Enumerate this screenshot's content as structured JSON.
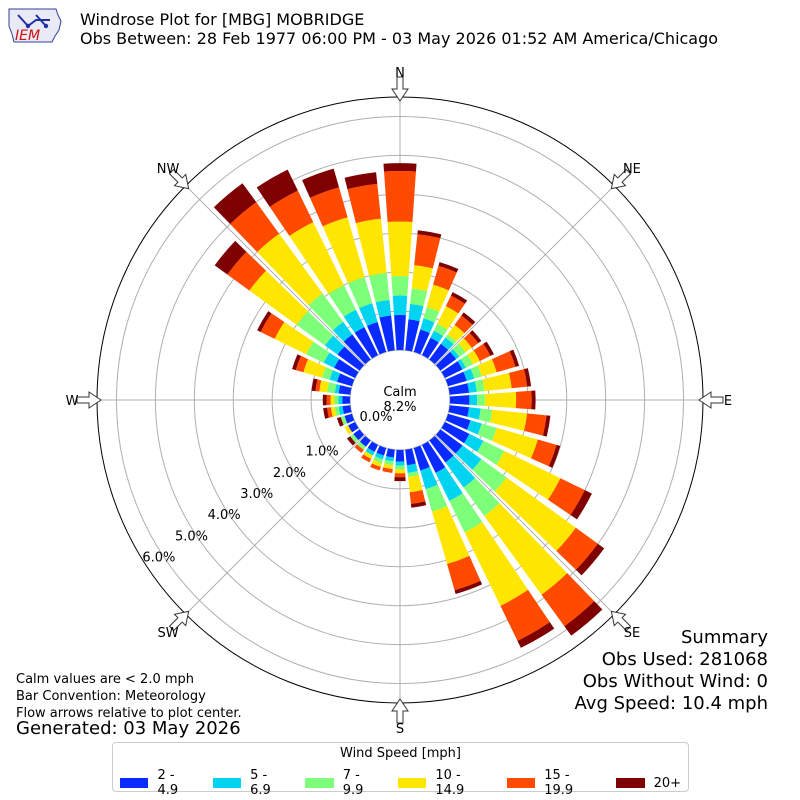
{
  "logo_text": "IEM",
  "title_line1": "Windrose Plot for [MBG] MOBRIDGE",
  "title_line2": "Obs Between: 28 Feb 1977 06:00 PM - 03 May 2026 01:52 AM America/Chicago",
  "calm": {
    "label": "Calm",
    "value": "8.2%"
  },
  "notes": [
    "Calm values are < 2.0 mph",
    "Bar Convention: Meteorology",
    "Flow arrows relative to plot center."
  ],
  "generated": "Generated: 03 May 2026",
  "summary": {
    "title": "Summary",
    "obs_used": "Obs Used: 281068",
    "obs_without_wind": "Obs Without Wind: 0",
    "avg_speed": "Avg Speed: 10.4 mph"
  },
  "legend": {
    "title": "Wind Speed [mph]",
    "items": [
      {
        "label": "2 - 4.9",
        "color": "#0a2bff"
      },
      {
        "label": "5 - 6.9",
        "color": "#00d4f0"
      },
      {
        "label": "7 - 9.9",
        "color": "#7dff7a"
      },
      {
        "label": "10 - 14.9",
        "color": "#ffe600"
      },
      {
        "label": "15 - 19.9",
        "color": "#ff4a00"
      },
      {
        "label": "20+",
        "color": "#7f0000"
      }
    ]
  },
  "chart_data": {
    "type": "windrose",
    "compass_labels": {
      "N": 0,
      "NE": 45,
      "E": 90,
      "SE": 135,
      "S": 180,
      "SW": 225,
      "W": 270,
      "NW": 315
    },
    "radial_ticks": [
      {
        "label": "0.0%",
        "value": 0
      },
      {
        "label": "1.0%",
        "value": 1
      },
      {
        "label": "2.0%",
        "value": 2
      },
      {
        "label": "3.0%",
        "value": 3
      },
      {
        "label": "4.0%",
        "value": 4
      },
      {
        "label": "5.0%",
        "value": 5
      },
      {
        "label": "6.0%",
        "value": 6
      }
    ],
    "rmax": 6.5,
    "bin_labels": [
      "2 - 4.9",
      "5 - 6.9",
      "7 - 9.9",
      "10 - 14.9",
      "15 - 19.9",
      "20+"
    ],
    "colors": [
      "#0a2bff",
      "#00d4f0",
      "#7dff7a",
      "#ffe600",
      "#ff4a00",
      "#7f0000"
    ],
    "directions": [
      0,
      10,
      20,
      30,
      40,
      50,
      60,
      70,
      80,
      90,
      100,
      110,
      120,
      130,
      140,
      150,
      160,
      170,
      180,
      190,
      200,
      210,
      220,
      230,
      240,
      250,
      260,
      270,
      280,
      290,
      300,
      310,
      320,
      330,
      340,
      350
    ],
    "cumulative_percent": [
      [
        0.9,
        1.4,
        1.9,
        3.3,
        4.6,
        4.8
      ],
      [
        0.8,
        1.2,
        1.6,
        2.2,
        3.0,
        3.1
      ],
      [
        0.6,
        0.9,
        1.2,
        1.8,
        2.3,
        2.4
      ],
      [
        0.5,
        0.7,
        0.9,
        1.4,
        1.7,
        1.8
      ],
      [
        0.5,
        0.7,
        0.8,
        1.1,
        1.4,
        1.5
      ],
      [
        0.5,
        0.6,
        0.8,
        1.0,
        1.2,
        1.3
      ],
      [
        0.5,
        0.6,
        0.8,
        1.0,
        1.3,
        1.4
      ],
      [
        0.5,
        0.7,
        0.9,
        1.3,
        1.8,
        1.9
      ],
      [
        0.5,
        0.7,
        0.9,
        1.6,
        2.0,
        2.1
      ],
      [
        0.5,
        0.7,
        0.9,
        1.7,
        2.1,
        2.2
      ],
      [
        0.5,
        0.8,
        1.1,
        2.0,
        2.5,
        2.6
      ],
      [
        0.6,
        0.9,
        1.3,
        2.4,
        2.9,
        3.0
      ],
      [
        0.7,
        1.1,
        1.7,
        3.3,
        4.0,
        4.2
      ],
      [
        0.7,
        1.3,
        2.1,
        4.3,
        5.0,
        5.2
      ],
      [
        0.7,
        1.5,
        2.4,
        4.9,
        5.9,
        6.2
      ],
      [
        0.8,
        1.6,
        2.5,
        4.6,
        5.6,
        5.8
      ],
      [
        0.6,
        1.1,
        1.7,
        3.1,
        3.8,
        3.9
      ],
      [
        0.4,
        0.6,
        0.7,
        1.1,
        1.4,
        1.5
      ],
      [
        0.3,
        0.4,
        0.5,
        0.6,
        0.7,
        0.8
      ],
      [
        0.2,
        0.3,
        0.4,
        0.5,
        0.6,
        0.6
      ],
      [
        0.2,
        0.3,
        0.4,
        0.5,
        0.6,
        0.6
      ],
      [
        0.2,
        0.3,
        0.3,
        0.4,
        0.5,
        0.5
      ],
      [
        0.2,
        0.2,
        0.3,
        0.3,
        0.4,
        0.4
      ],
      [
        0.2,
        0.2,
        0.3,
        0.3,
        0.3,
        0.4
      ],
      [
        0.2,
        0.2,
        0.2,
        0.3,
        0.3,
        0.3
      ],
      [
        0.2,
        0.2,
        0.3,
        0.3,
        0.3,
        0.4
      ],
      [
        0.2,
        0.3,
        0.4,
        0.5,
        0.6,
        0.7
      ],
      [
        0.2,
        0.3,
        0.4,
        0.5,
        0.6,
        0.7
      ],
      [
        0.3,
        0.4,
        0.6,
        0.8,
        0.9,
        1.0
      ],
      [
        0.4,
        0.6,
        0.8,
        1.3,
        1.5,
        1.6
      ],
      [
        0.6,
        0.9,
        1.4,
        2.3,
        2.7,
        2.8
      ],
      [
        0.7,
        1.1,
        2.0,
        3.5,
        4.2,
        4.6
      ],
      [
        0.8,
        1.2,
        2.1,
        4.0,
        5.0,
        5.6
      ],
      [
        0.8,
        1.3,
        2.0,
        3.8,
        4.7,
        5.3
      ],
      [
        0.8,
        1.3,
        2.0,
        3.6,
        4.4,
        4.9
      ],
      [
        0.9,
        1.3,
        2.0,
        3.4,
        4.3,
        4.6
      ]
    ]
  }
}
